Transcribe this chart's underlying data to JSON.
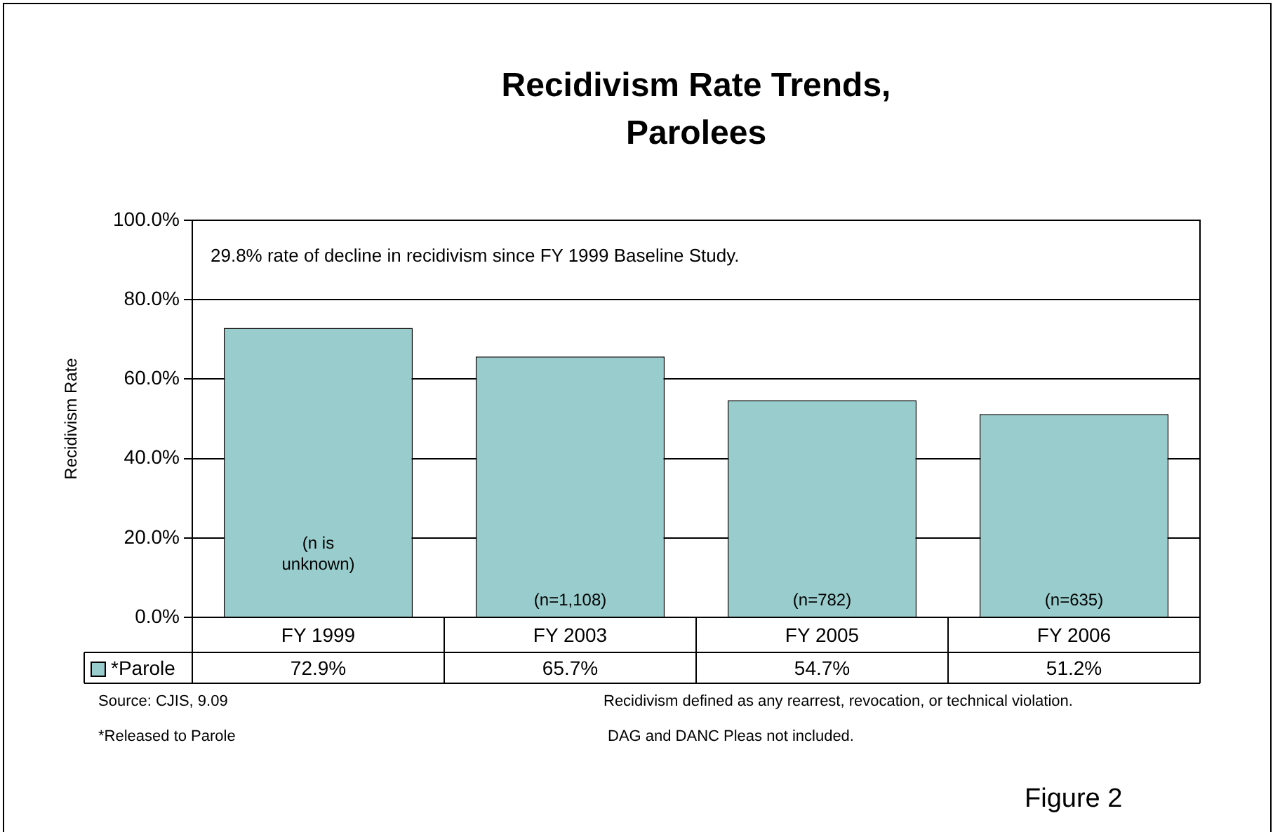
{
  "chart_data": {
    "type": "bar",
    "title": "Recidivism Rate Trends, Parolees",
    "ylabel": "Recidivism Rate",
    "categories": [
      "FY 1999",
      "FY 2003",
      "FY 2005",
      "FY 2006"
    ],
    "series": [
      {
        "name": "*Parole",
        "color": "#99cccc",
        "values": [
          72.9,
          65.7,
          54.7,
          51.2
        ],
        "value_labels": [
          "72.9%",
          "65.7%",
          "54.7%",
          "51.2%"
        ]
      }
    ],
    "ylim": [
      0,
      100
    ],
    "yticks": [
      {
        "value": 0,
        "label": "0.0%"
      },
      {
        "value": 20,
        "label": "20.0%"
      },
      {
        "value": 40,
        "label": "40.0%"
      },
      {
        "value": 60,
        "label": "60.0%"
      },
      {
        "value": 80,
        "label": "80.0%"
      },
      {
        "value": 100,
        "label": "100.0%"
      }
    ],
    "grid": "y",
    "legend": "bottom",
    "annotations": [
      "29.8% rate of decline in recidivism since FY 1999 Baseline Study.",
      "Source: CJIS, 9.09",
      "Recidivism defined as any rearrest, revocation, or technical violation.",
      "*Released to Parole",
      "DAG and DANC Pleas not included.",
      "Figure 2",
      "(n is unknown)",
      "(n=1,108)",
      "(n=782)",
      "(n=635)"
    ]
  }
}
